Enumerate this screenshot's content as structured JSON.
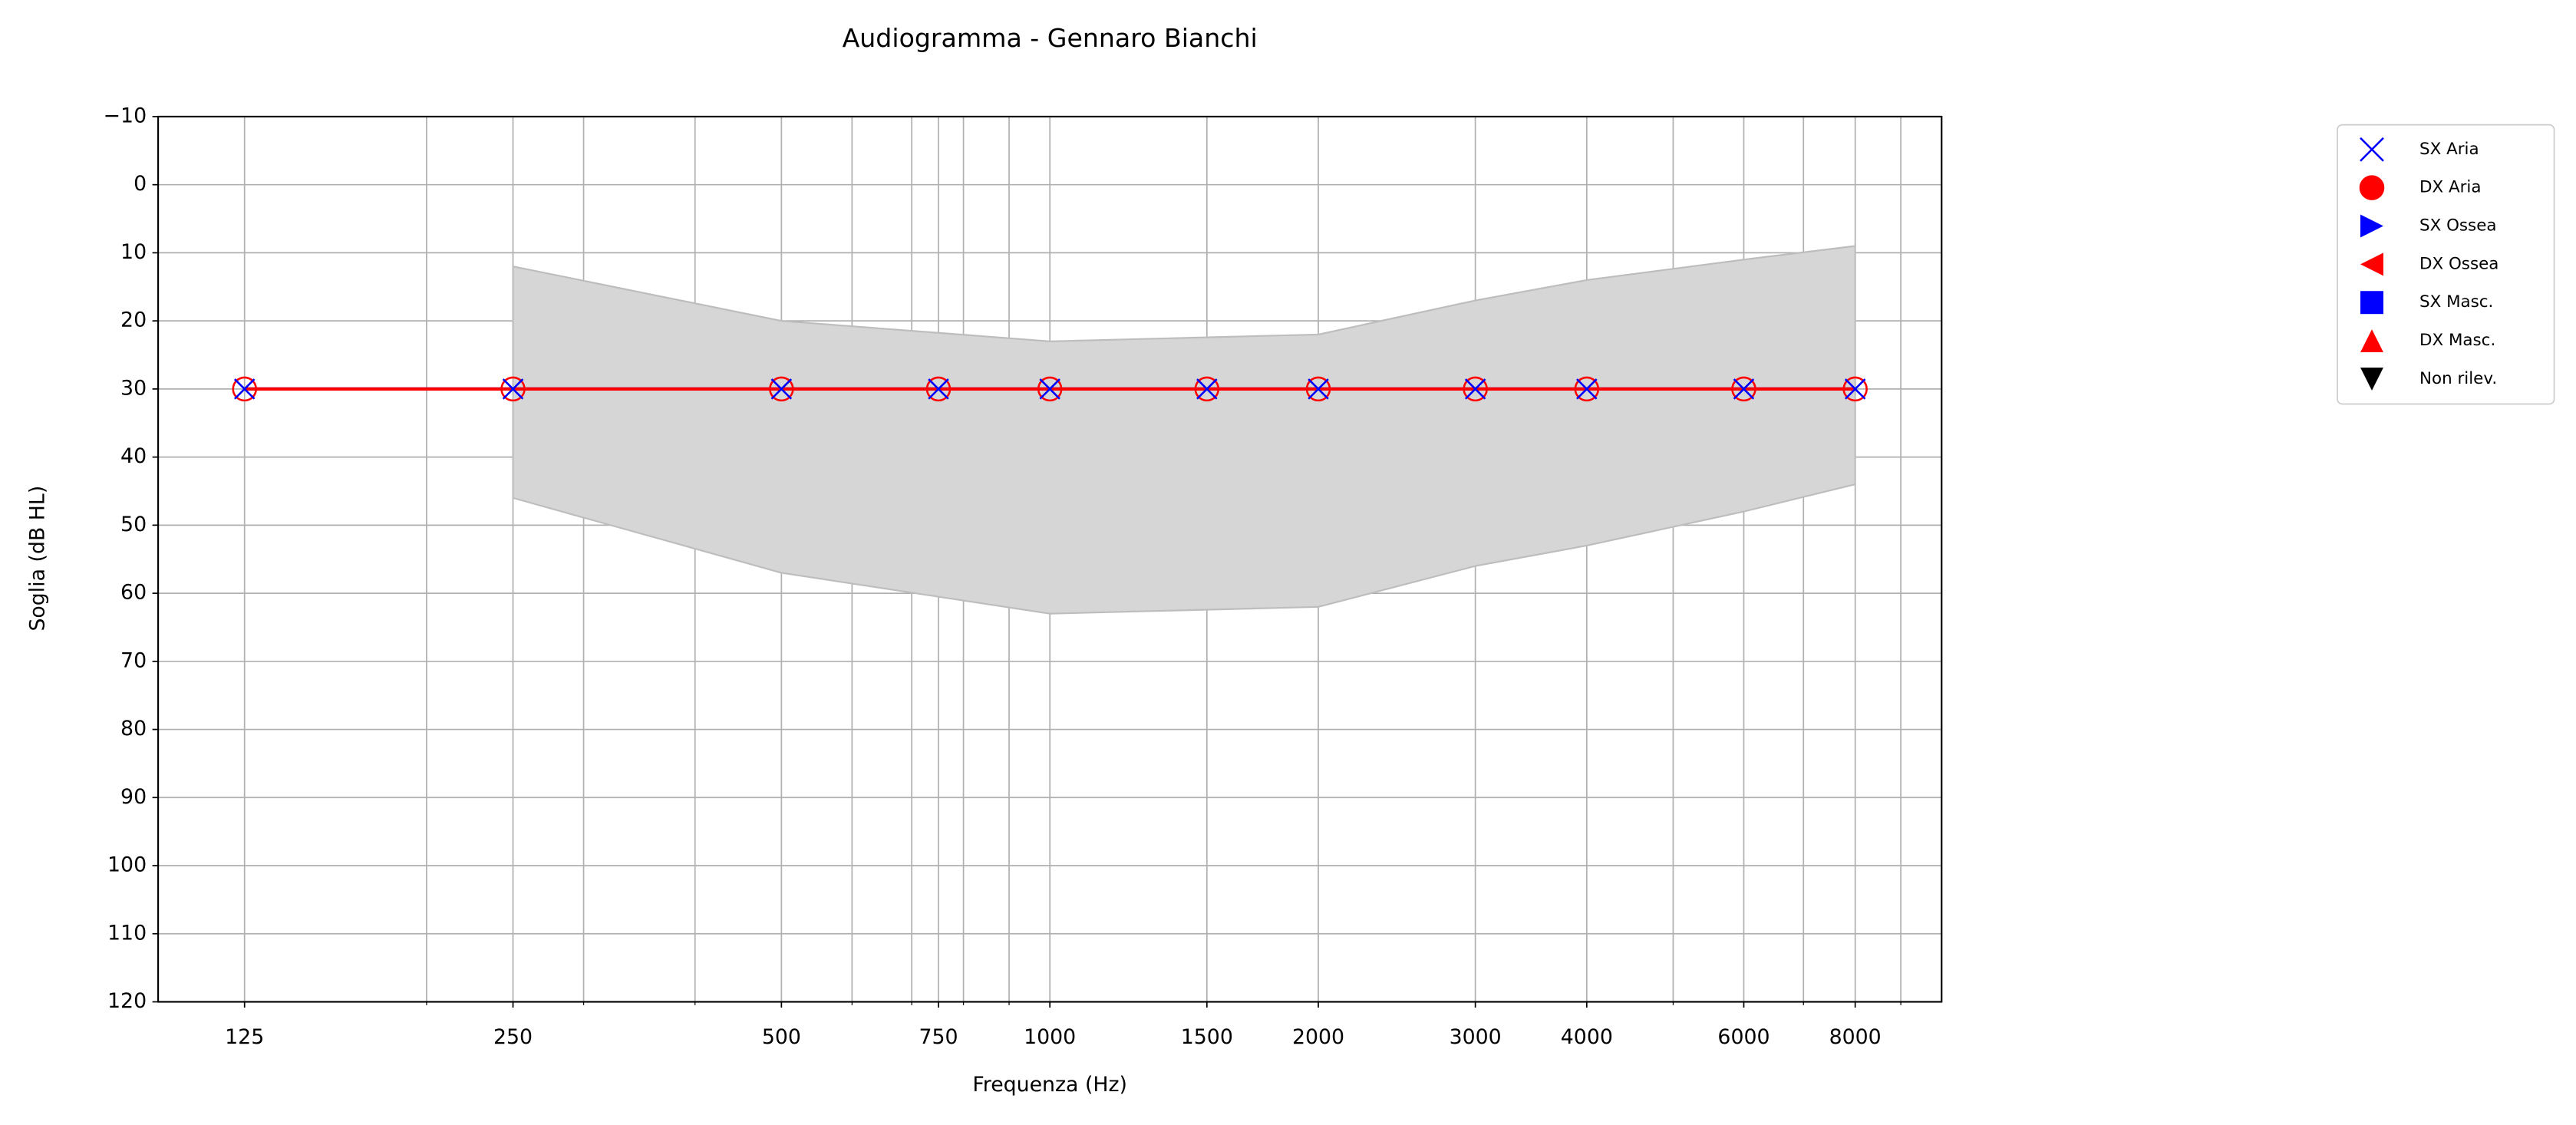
{
  "chart_data": {
    "type": "line",
    "title": "Audiogramma - Gennaro Bianchi",
    "xlabel": "Frequenza (Hz)",
    "ylabel": "Soglia (dB HL)",
    "xscale": "log",
    "xlim": [
      100,
      10000
    ],
    "xticks": [
      125,
      250,
      500,
      750,
      1000,
      1500,
      2000,
      3000,
      4000,
      6000,
      8000
    ],
    "xminorticks": [
      200,
      300,
      400,
      600,
      700,
      800,
      900,
      5000,
      7000,
      9000
    ],
    "ylim": [
      120,
      -10
    ],
    "yticks": [
      {
        "value": -10,
        "label": "−10"
      },
      0,
      10,
      20,
      30,
      40,
      50,
      60,
      70,
      80,
      90,
      100,
      110,
      120
    ],
    "grid": true,
    "legend_position": "outside-right",
    "x": [
      125,
      250,
      500,
      750,
      1000,
      1500,
      2000,
      3000,
      4000,
      6000,
      8000
    ],
    "series": [
      {
        "name": "SX Aria",
        "color": "#0000ff",
        "marker": "x",
        "values": [
          30,
          30,
          30,
          30,
          30,
          30,
          30,
          30,
          30,
          30,
          30
        ]
      },
      {
        "name": "DX Aria",
        "color": "#ff0000",
        "marker": "o",
        "values": [
          30,
          30,
          30,
          30,
          30,
          30,
          30,
          30,
          30,
          30,
          30
        ]
      }
    ],
    "legend_extra": [
      {
        "name": "SX Ossea",
        "color": "#0000ff",
        "marker": ">"
      },
      {
        "name": "DX Ossea",
        "color": "#ff0000",
        "marker": "<"
      },
      {
        "name": "SX Masc.",
        "color": "#0000ff",
        "marker": "s"
      },
      {
        "name": "DX Masc.",
        "color": "#ff0000",
        "marker": "^"
      },
      {
        "name": "Non rilev.",
        "color": "#000000",
        "marker": "v"
      }
    ],
    "normal_range": {
      "color": "#d6d6d6",
      "x": [
        250,
        500,
        1000,
        2000,
        3000,
        4000,
        6000,
        8000
      ],
      "low": [
        12,
        20,
        23,
        22,
        17,
        14,
        11,
        9
      ],
      "high": [
        46,
        57,
        63,
        62,
        56,
        53,
        48,
        44
      ]
    }
  }
}
